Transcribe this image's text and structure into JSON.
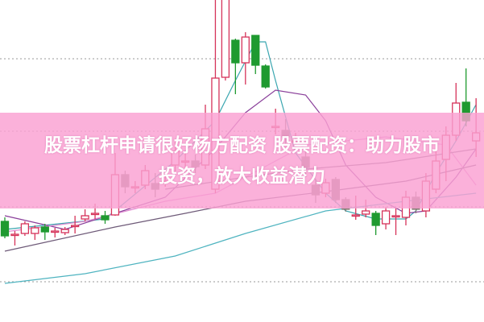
{
  "title": {
    "line1": "股票杠杆申请很好杨方配资 股票配资：助力股市",
    "line2": "投资，放大收益潜力"
  },
  "colors": {
    "up": "#d6335a",
    "down_green": "#1f9a30",
    "down_gray": "#8a7f78",
    "banner": "#f9a3d3",
    "grid": "#9a9a9a"
  },
  "chart_data": {
    "type": "candlestick",
    "grid": "dotted horizontal",
    "candles": [
      {
        "o": 125,
        "c": 107,
        "h": 130,
        "l": 104
      },
      {
        "o": 109,
        "c": 109,
        "h": 113,
        "l": 95
      },
      {
        "o": 110,
        "c": 122,
        "h": 125,
        "l": 107
      },
      {
        "o": 110,
        "c": 117,
        "h": 120,
        "l": 102
      },
      {
        "o": 118,
        "c": 112,
        "h": 122,
        "l": 102
      },
      {
        "o": 113,
        "c": 113,
        "h": 117,
        "l": 105
      },
      {
        "o": 111,
        "c": 115,
        "h": 118,
        "l": 108
      },
      {
        "o": 120,
        "c": 120,
        "h": 132,
        "l": 110
      },
      {
        "o": 128,
        "c": 132,
        "h": 140,
        "l": 125
      },
      {
        "o": 135,
        "c": 135,
        "h": 147,
        "l": 128
      },
      {
        "o": 132,
        "c": 127,
        "h": 138,
        "l": 122
      },
      {
        "o": 133,
        "c": 183,
        "h": 210,
        "l": 132
      },
      {
        "o": 183,
        "c": 168,
        "h": 188,
        "l": 160
      },
      {
        "o": 168,
        "c": 168,
        "h": 175,
        "l": 160
      },
      {
        "o": 170,
        "c": 188,
        "h": 195,
        "l": 165
      },
      {
        "o": 172,
        "c": 165,
        "h": 185,
        "l": 155
      },
      {
        "o": 175,
        "c": 175,
        "h": 185,
        "l": 168
      },
      {
        "o": 195,
        "c": 212,
        "h": 225,
        "l": 185
      },
      {
        "o": 200,
        "c": 200,
        "h": 210,
        "l": 190
      },
      {
        "o": 200,
        "c": 193,
        "h": 208,
        "l": 185
      },
      {
        "o": 195,
        "c": 240,
        "h": 270,
        "l": 190
      },
      {
        "o": 165,
        "c": 303,
        "h": 410,
        "l": 160
      },
      {
        "o": 304,
        "c": 410,
        "h": 410,
        "l": 300
      },
      {
        "o": 350,
        "c": 322,
        "h": 352,
        "l": 283
      },
      {
        "o": 322,
        "c": 354,
        "h": 360,
        "l": 295
      },
      {
        "o": 356,
        "c": 319,
        "h": 356,
        "l": 308
      },
      {
        "o": 318,
        "c": 292,
        "h": 320,
        "l": 290
      },
      {
        "o": 243,
        "c": 243,
        "h": 265,
        "l": 233
      },
      {
        "o": 238,
        "c": 230,
        "h": 252,
        "l": 220
      },
      {
        "o": 225,
        "c": 225,
        "h": 235,
        "l": 215
      },
      {
        "o": 205,
        "c": 192,
        "h": 215,
        "l": 180
      },
      {
        "o": 170,
        "c": 158,
        "h": 178,
        "l": 148
      },
      {
        "o": 160,
        "c": 173,
        "h": 178,
        "l": 155
      },
      {
        "o": 177,
        "c": 152,
        "h": 180,
        "l": 148
      },
      {
        "o": 152,
        "c": 140,
        "h": 155,
        "l": 137
      },
      {
        "o": 133,
        "c": 133,
        "h": 157,
        "l": 127
      },
      {
        "o": 134,
        "c": 138,
        "h": 152,
        "l": 130
      },
      {
        "o": 135,
        "c": 120,
        "h": 138,
        "l": 108
      },
      {
        "o": 122,
        "c": 138,
        "h": 143,
        "l": 115
      },
      {
        "o": 132,
        "c": 132,
        "h": 141,
        "l": 108
      },
      {
        "o": 130,
        "c": 155,
        "h": 163,
        "l": 120
      },
      {
        "o": 155,
        "c": 140,
        "h": 162,
        "l": 135
      },
      {
        "o": 138,
        "c": 175,
        "h": 185,
        "l": 130
      },
      {
        "o": 165,
        "c": 200,
        "h": 215,
        "l": 160
      },
      {
        "o": 202,
        "c": 232,
        "h": 243,
        "l": 175
      },
      {
        "o": 232,
        "c": 272,
        "h": 297,
        "l": 225
      },
      {
        "o": 273,
        "c": 250,
        "h": 315,
        "l": 243
      },
      {
        "o": 225,
        "c": 235,
        "h": 278,
        "l": 205
      }
    ],
    "gray_down_indices": [
      12,
      15,
      19,
      28,
      30,
      31,
      33,
      34,
      41
    ],
    "moving_averages": [
      {
        "color": "#3aa6b0",
        "points": [
          [
            0,
            115
          ],
          [
            10,
            128
          ],
          [
            17,
            200
          ],
          [
            21,
            250
          ],
          [
            23,
            300
          ],
          [
            25,
            348
          ],
          [
            26,
            348
          ],
          [
            27,
            300
          ],
          [
            29,
            210
          ],
          [
            32,
            160
          ],
          [
            34,
            138
          ],
          [
            37,
            128
          ],
          [
            40,
            128
          ],
          [
            41,
            138
          ],
          [
            43,
            185
          ],
          [
            45,
            225
          ],
          [
            47,
            270
          ]
        ]
      },
      {
        "color": "#8a3f9a",
        "points": [
          [
            0,
            132
          ],
          [
            6,
            115
          ],
          [
            11,
            135
          ],
          [
            16,
            155
          ],
          [
            21,
            215
          ],
          [
            24,
            260
          ],
          [
            27,
            288
          ],
          [
            30,
            282
          ],
          [
            32,
            250
          ],
          [
            34,
            195
          ],
          [
            37,
            155
          ],
          [
            40,
            135
          ],
          [
            42,
            138
          ],
          [
            45,
            180
          ],
          [
            47,
            215
          ]
        ]
      },
      {
        "color": "#e08ad0",
        "points": [
          [
            0,
            112
          ],
          [
            8,
            125
          ],
          [
            16,
            150
          ],
          [
            21,
            160
          ],
          [
            30,
            220
          ],
          [
            38,
            230
          ],
          [
            44,
            220
          ],
          [
            47,
            170
          ]
        ]
      },
      {
        "color": "#6e5a78",
        "points": [
          [
            0,
            88
          ],
          [
            11,
            118
          ],
          [
            18,
            135
          ],
          [
            24,
            150
          ],
          [
            32,
            162
          ],
          [
            40,
            175
          ],
          [
            47,
            195
          ]
        ]
      },
      {
        "color": "#7a6a80",
        "points": [
          [
            16,
            165
          ],
          [
            24,
            180
          ],
          [
            30,
            190
          ],
          [
            38,
            198
          ],
          [
            47,
            215
          ]
        ]
      },
      {
        "color": "#4fb4c0",
        "points": [
          [
            0,
            48
          ],
          [
            8,
            60
          ],
          [
            17,
            82
          ],
          [
            24,
            110
          ],
          [
            32,
            138
          ],
          [
            40,
            150
          ],
          [
            47,
            160
          ]
        ]
      }
    ],
    "gridlines": [
      327,
      237,
      143,
      50
    ]
  }
}
